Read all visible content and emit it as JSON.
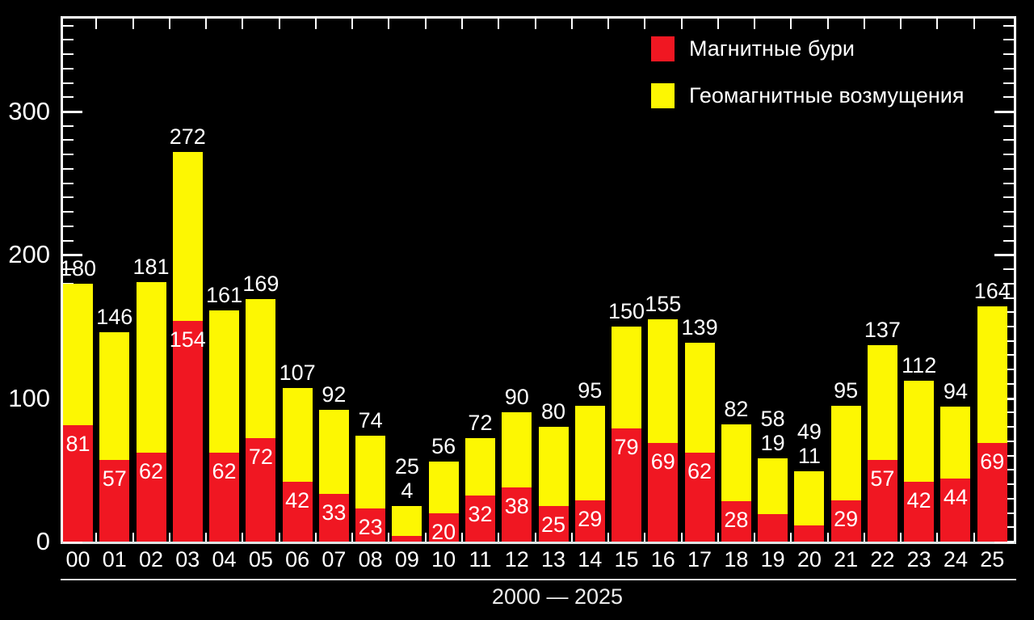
{
  "chart_data": {
    "type": "bar",
    "stacked": true,
    "title": "",
    "xlabel": "2000 — 2025",
    "ylabel": "",
    "categories": [
      "00",
      "01",
      "02",
      "03",
      "04",
      "05",
      "06",
      "07",
      "08",
      "09",
      "10",
      "11",
      "12",
      "13",
      "14",
      "15",
      "16",
      "17",
      "18",
      "19",
      "20",
      "21",
      "22",
      "23",
      "24",
      "25"
    ],
    "series": [
      {
        "name": "Магнитные бури",
        "color": "#f01722",
        "values": [
          81,
          57,
          62,
          154,
          62,
          72,
          42,
          33,
          23,
          4,
          20,
          32,
          38,
          25,
          29,
          79,
          69,
          62,
          28,
          19,
          11,
          29,
          57,
          42,
          44,
          69
        ]
      },
      {
        "name": "Геомагнитные возмущения",
        "color": "#fdf702",
        "values": [
          99,
          89,
          119,
          118,
          99,
          97,
          65,
          59,
          51,
          21,
          36,
          40,
          52,
          55,
          66,
          71,
          86,
          77,
          54,
          39,
          38,
          66,
          80,
          70,
          50,
          95
        ]
      }
    ],
    "total_labels": [
      180,
      146,
      181,
      272,
      161,
      169,
      107,
      92,
      74,
      25,
      56,
      72,
      90,
      80,
      95,
      150,
      155,
      139,
      82,
      58,
      49,
      95,
      137,
      112,
      94,
      164
    ],
    "labels_above_bar_indices": [
      9,
      19,
      20
    ],
    "yticks": [
      0,
      100,
      200,
      300
    ],
    "ylim": [
      0,
      365
    ],
    "minor_tick_step": 10,
    "grid": false,
    "legend_position": "top-right",
    "background_color": "#000000",
    "axis_color": "#ffffff",
    "label_color": "#ffffff"
  }
}
